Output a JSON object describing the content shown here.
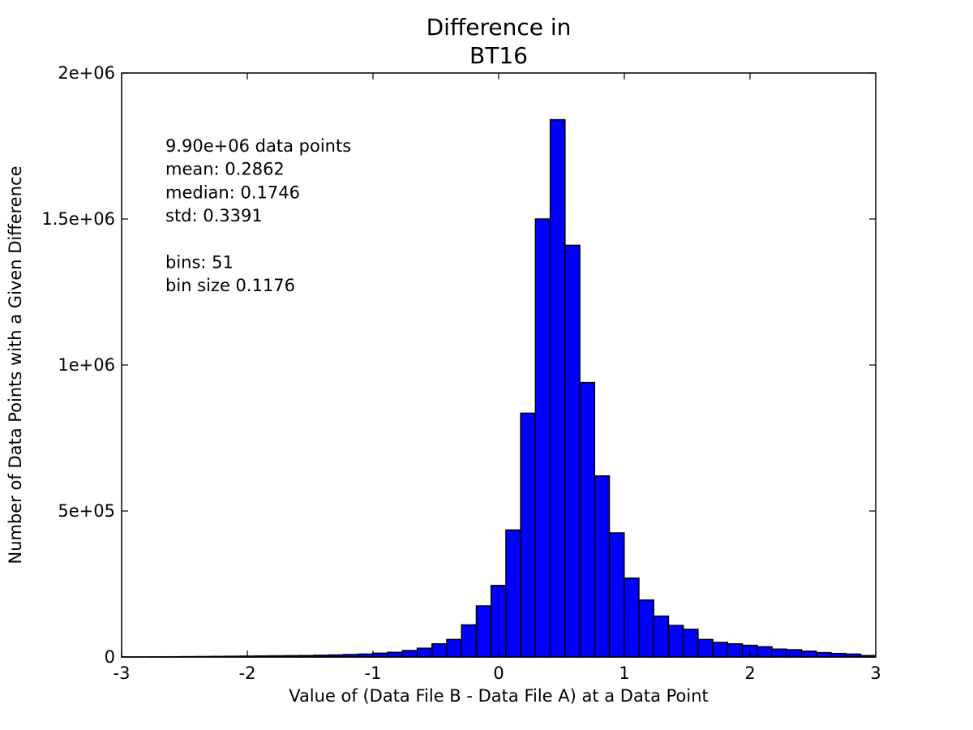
{
  "chart_data": {
    "type": "bar",
    "title_lines": [
      "Difference in",
      "BT16"
    ],
    "xlabel": "Value of (Data File B - Data File A) at a Data Point",
    "ylabel": "Number of Data Points with a Given Difference",
    "xlim": [
      -3,
      3
    ],
    "ylim": [
      0,
      2000000
    ],
    "x_ticks": [
      {
        "value": -3,
        "label": "-3"
      },
      {
        "value": -2,
        "label": "-2"
      },
      {
        "value": -1,
        "label": "-1"
      },
      {
        "value": 0,
        "label": "0"
      },
      {
        "value": 1,
        "label": "1"
      },
      {
        "value": 2,
        "label": "2"
      },
      {
        "value": 3,
        "label": "3"
      }
    ],
    "y_ticks": [
      {
        "value": 0,
        "label": "0"
      },
      {
        "value": 500000,
        "label": "5e+05"
      },
      {
        "value": 1000000,
        "label": "1e+06"
      },
      {
        "value": 1500000,
        "label": "1.5e+06"
      },
      {
        "value": 2000000,
        "label": "2e+06"
      }
    ],
    "bar_color": "#0000ff",
    "edge_color": "#000000",
    "bin_start": -3.0,
    "bin_width": 0.1176,
    "values": [
      200,
      300,
      500,
      800,
      1200,
      1600,
      2000,
      2500,
      3000,
      3500,
      4000,
      4500,
      5000,
      6000,
      7000,
      8500,
      10000,
      13000,
      16000,
      22000,
      30000,
      45000,
      60000,
      110000,
      175000,
      245000,
      435000,
      835000,
      1500000,
      1840000,
      1410000,
      940000,
      620000,
      425000,
      270000,
      195000,
      140000,
      108000,
      95000,
      60000,
      50000,
      45000,
      40000,
      35000,
      27000,
      25000,
      20000,
      15000,
      12000,
      10000,
      5000
    ],
    "annotation_lines": [
      "9.90e+06 data points",
      "mean: 0.2862",
      "median: 0.1746",
      "std: 0.3391",
      "",
      "bins: 51",
      "bin size 0.1176"
    ],
    "grid": false
  }
}
